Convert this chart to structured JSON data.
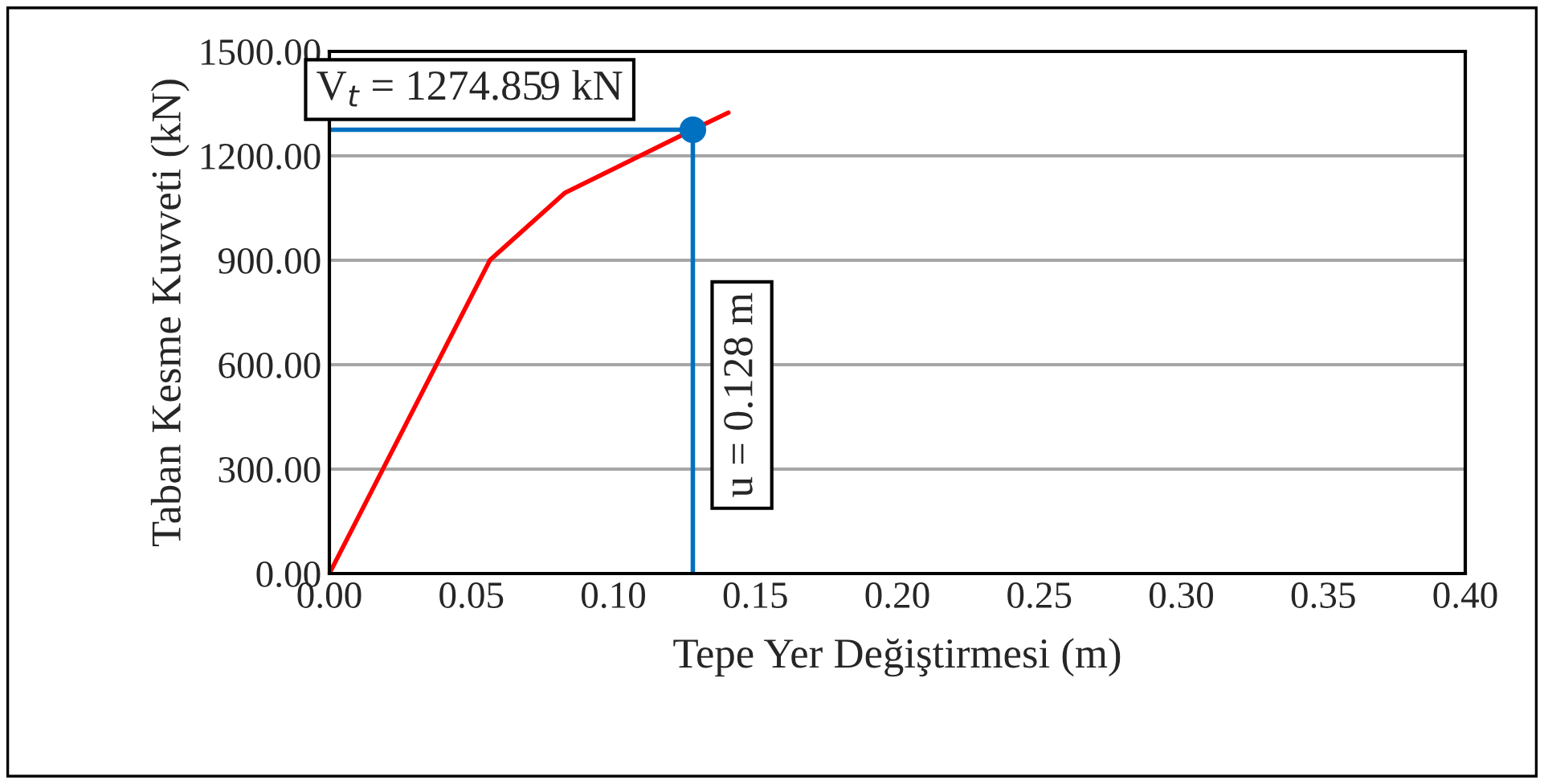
{
  "chart_data": {
    "type": "line",
    "xlabel": "Tepe Yer Değiştirmesi (m)",
    "ylabel": "Taban Kesme Kuvveti (kN)",
    "series": [
      {
        "color": "#ff0000",
        "x": [
          0,
          0.0566,
          0.083,
          0.128,
          0.1405
        ],
        "values": [
          0,
          901,
          1094,
          1274.859,
          1324
        ]
      },
      {
        "color": "#0070c0",
        "x": [
          0,
          0.128,
          0.128
        ],
        "values": [
          1274.859,
          1274.859,
          0
        ]
      },
      {
        "type": "scatter",
        "color": "#0070c0",
        "marker": "circle",
        "x": [
          0.128
        ],
        "values": [
          1274.859
        ]
      }
    ],
    "annotations": [
      {
        "text": "V$_{t}$ = 1274.859 kN",
        "x": 0.128,
        "y": 1274.859
      },
      {
        "text": "u = 0.128 m",
        "x": 0.128,
        "y": 0
      }
    ],
    "xlim": [
      0,
      0.4
    ],
    "ylim": [
      0,
      1500
    ],
    "xticks": [
      {
        "value": 0,
        "label": "0.00"
      },
      {
        "value": 0.05,
        "label": "0.05"
      },
      {
        "value": 0.1,
        "label": "0.10"
      },
      {
        "value": 0.15,
        "label": "0.15"
      },
      {
        "value": 0.2,
        "label": "0.20"
      },
      {
        "value": 0.25,
        "label": "0.25"
      },
      {
        "value": 0.3,
        "label": "0.30"
      },
      {
        "value": 0.35,
        "label": "0.35"
      },
      {
        "value": 0.4,
        "label": "0.40"
      }
    ],
    "yticks": [
      {
        "value": 0,
        "label": "0.00"
      },
      {
        "value": 300,
        "label": "300.00"
      },
      {
        "value": 600,
        "label": "600.00"
      },
      {
        "value": 900,
        "label": "900.00"
      },
      {
        "value": 1200,
        "label": "1200.00"
      },
      {
        "value": 1500,
        "label": "1500.00"
      }
    ],
    "grid": "y",
    "legend": false
  }
}
